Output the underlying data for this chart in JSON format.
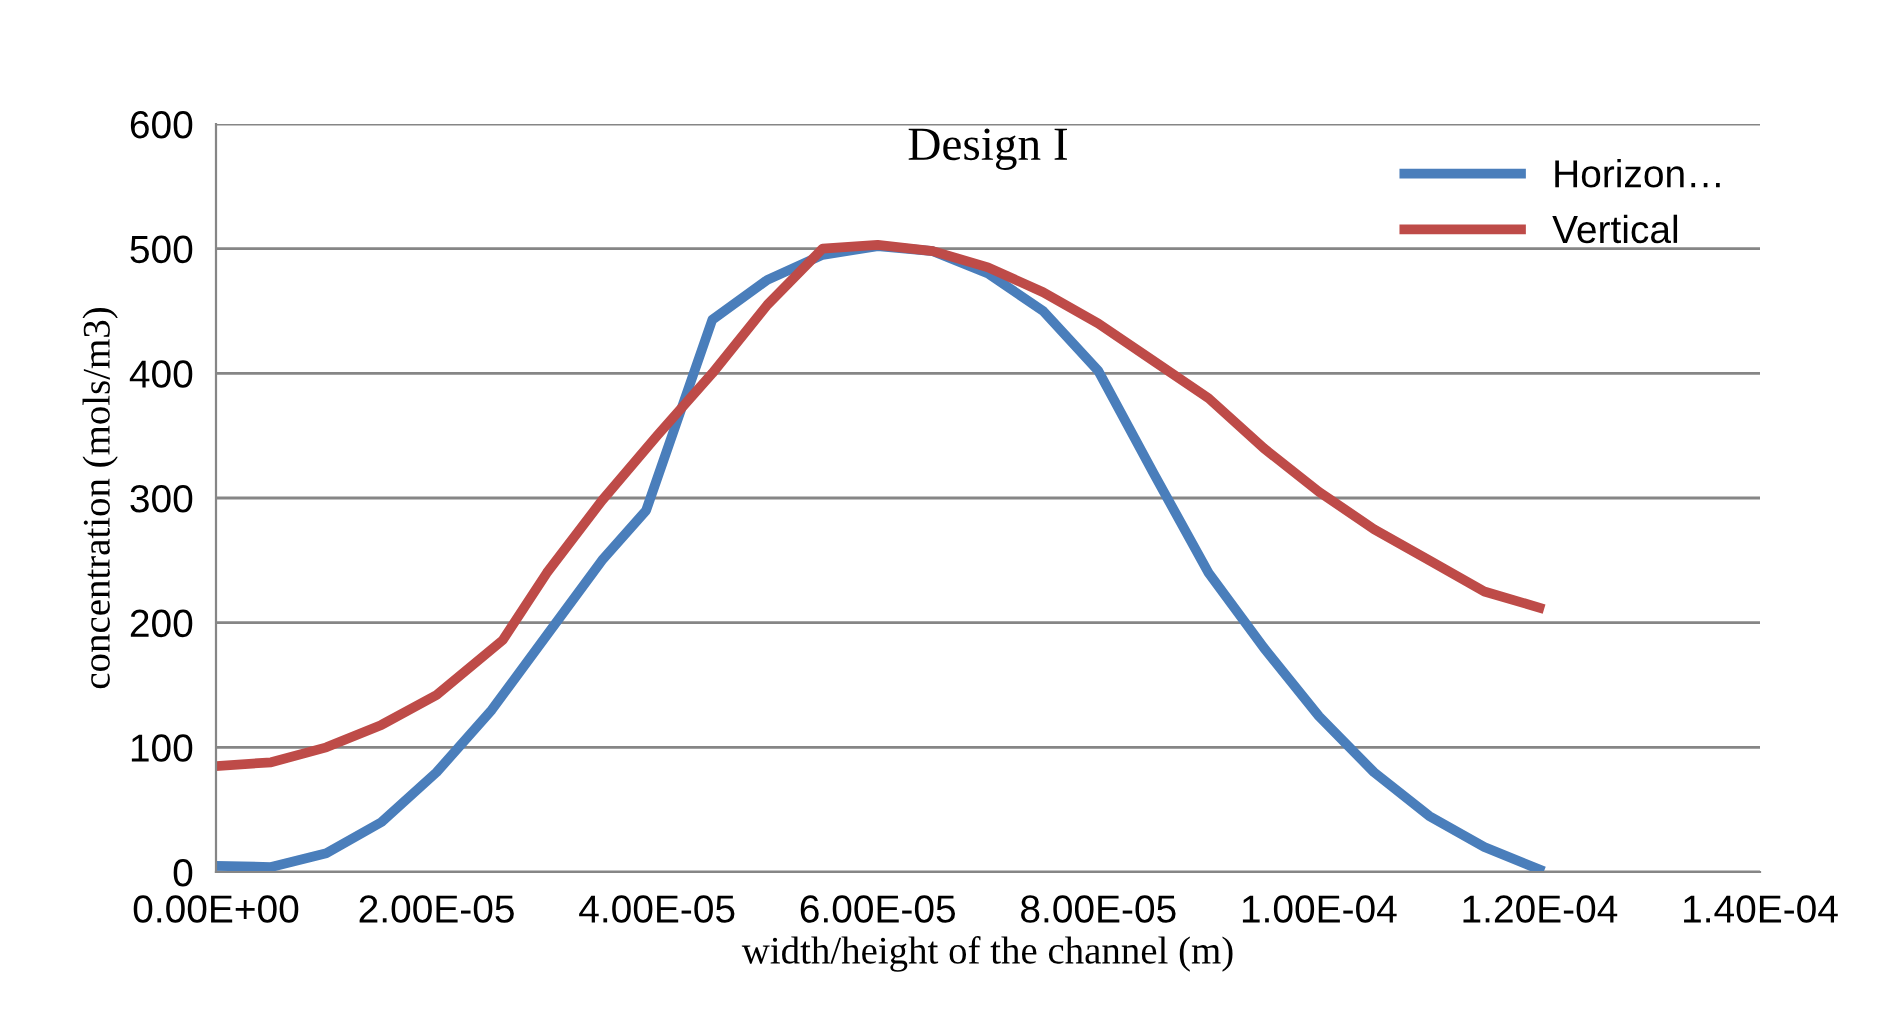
{
  "chart_data": {
    "type": "line",
    "title": "Design I",
    "xlabel": "width/height of the channel (m)",
    "ylabel": "concentration (mols/m3)",
    "xlim": [
      0,
      0.00014
    ],
    "xticks": [
      {
        "value": 0,
        "label": "0.00E+00"
      },
      {
        "value": 2e-05,
        "label": "2.00E-05"
      },
      {
        "value": 4e-05,
        "label": "4.00E-05"
      },
      {
        "value": 6e-05,
        "label": "6.00E-05"
      },
      {
        "value": 8e-05,
        "label": "8.00E-05"
      },
      {
        "value": 0.0001,
        "label": "1.00E-04"
      },
      {
        "value": 0.00012,
        "label": "1.20E-04"
      },
      {
        "value": 0.00014,
        "label": "1.40E-04"
      }
    ],
    "ylim": [
      0,
      600
    ],
    "yticks": [
      0,
      100,
      200,
      300,
      400,
      500,
      600
    ],
    "grid": "y",
    "legend": "top right",
    "marker": "none",
    "line_style": "solid",
    "series": [
      {
        "name": "Horizon…",
        "color": "#4a7ebb",
        "x": [
          0,
          5e-06,
          1e-05,
          1.5e-05,
          2e-05,
          2.5e-05,
          3e-05,
          3.5e-05,
          3.9e-05,
          4.5e-05,
          5e-05,
          5.5e-05,
          6e-05,
          6.5e-05,
          7e-05,
          7.5e-05,
          8e-05,
          8.5e-05,
          9e-05,
          9.5e-05,
          0.0001,
          0.000105,
          0.00011,
          0.000115,
          0.00012
        ],
        "values": [
          5,
          4,
          15,
          40,
          80,
          130,
          190,
          250,
          290,
          443,
          475,
          495,
          502,
          498,
          480,
          450,
          402,
          320,
          240,
          180,
          125,
          80,
          45,
          20,
          2
        ]
      },
      {
        "name": "Vertical",
        "color": "#be4b48",
        "x": [
          0,
          5e-06,
          1e-05,
          1.5e-05,
          2e-05,
          2.6e-05,
          3e-05,
          3.5e-05,
          4e-05,
          4.5e-05,
          5e-05,
          5.5e-05,
          6e-05,
          6.5e-05,
          7e-05,
          7.5e-05,
          8e-05,
          8.5e-05,
          9e-05,
          9.5e-05,
          0.0001,
          0.000105,
          0.00011,
          0.000115,
          0.00012
        ],
        "values": [
          85,
          88,
          100,
          118,
          142,
          186,
          240,
          298,
          350,
          400,
          455,
          500,
          503,
          498,
          485,
          465,
          440,
          410,
          380,
          340,
          305,
          275,
          250,
          225,
          212
        ]
      }
    ]
  }
}
